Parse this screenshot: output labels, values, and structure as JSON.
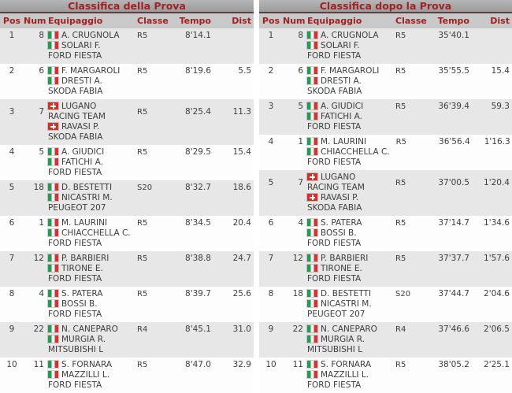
{
  "colors": {
    "title_text": "#a32026",
    "title_bar_top": "#b6b6b6",
    "title_bar_bottom": "#9b9b9b",
    "title_divider": "#5a4140",
    "header_bg": "#c9c9c9",
    "header_text": "#a32020",
    "row_stripe": "#e7e7e7",
    "body_text": "#3d3d3d",
    "italy_flag_green": "#1e9e4f",
    "italy_flag_red": "#d8312f",
    "swiss_flag_red": "#dd2c22"
  },
  "tables": [
    {
      "title": "Classifica della Prova",
      "columns": [
        "Pos",
        "Num",
        "Equipaggio",
        "Classe",
        "Tempo",
        "Dist"
      ],
      "rows": [
        {
          "pos": "1",
          "num": "8",
          "driver_flag": "it",
          "driver": "A. CRUGNOLA",
          "codriver_flag": "it",
          "codriver": "SOLARI F.",
          "car": "FORD FIESTA",
          "classe": "R5",
          "tempo": "8'14.1",
          "dist": ""
        },
        {
          "pos": "2",
          "num": "6",
          "driver_flag": "it",
          "driver": "F. MARGAROLI",
          "codriver_flag": "it",
          "codriver": "DRESTI A.",
          "car": "SKODA FABIA",
          "classe": "R5",
          "tempo": "8'19.6",
          "dist": "5.5"
        },
        {
          "pos": "3",
          "num": "7",
          "driver_flag": "ch",
          "driver": "LUGANO RACING TEAM",
          "codriver_flag": "ch",
          "codriver": "RAVASI P.",
          "car": "SKODA FABIA",
          "classe": "R5",
          "tempo": "8'25.4",
          "dist": "11.3"
        },
        {
          "pos": "4",
          "num": "5",
          "driver_flag": "it",
          "driver": "A. GIUDICI",
          "codriver_flag": "it",
          "codriver": "FATICHI A.",
          "car": "FORD FIESTA",
          "classe": "R5",
          "tempo": "8'29.5",
          "dist": "15.4"
        },
        {
          "pos": "5",
          "num": "18",
          "driver_flag": "it",
          "driver": "D. BESTETTI",
          "codriver_flag": "it",
          "codriver": "NICASTRI M.",
          "car": "PEUGEOT 207",
          "classe": "S20",
          "tempo": "8'32.7",
          "dist": "18.6"
        },
        {
          "pos": "6",
          "num": "1",
          "driver_flag": "it",
          "driver": "M. LAURINI",
          "codriver_flag": "it",
          "codriver": "CHIACCHELLA C.",
          "car": "FORD FIESTA",
          "classe": "R5",
          "tempo": "8'34.5",
          "dist": "20.4"
        },
        {
          "pos": "7",
          "num": "12",
          "driver_flag": "it",
          "driver": "P. BARBIERI",
          "codriver_flag": "it",
          "codriver": "TIRONE E.",
          "car": "FORD FIESTA",
          "classe": "R5",
          "tempo": "8'38.8",
          "dist": "24.7"
        },
        {
          "pos": "8",
          "num": "4",
          "driver_flag": "it",
          "driver": "S. PATERA",
          "codriver_flag": "it",
          "codriver": "BOSSI B.",
          "car": "FORD FIESTA",
          "classe": "R5",
          "tempo": "8'39.7",
          "dist": "25.6"
        },
        {
          "pos": "9",
          "num": "22",
          "driver_flag": "it",
          "driver": "N. CANEPARO",
          "codriver_flag": "it",
          "codriver": "MURGIA R.",
          "car": "MITSUBISHI L",
          "classe": "R4",
          "tempo": "8'45.1",
          "dist": "31.0"
        },
        {
          "pos": "10",
          "num": "11",
          "driver_flag": "it",
          "driver": "S. FORNARA",
          "codriver_flag": "it",
          "codriver": "MAZZILLI L.",
          "car": "FORD FIESTA",
          "classe": "R5",
          "tempo": "8'47.0",
          "dist": "32.9"
        }
      ]
    },
    {
      "title": "Classifica dopo la Prova",
      "columns": [
        "Pos",
        "Num",
        "Equipaggio",
        "Classe",
        "Tempo",
        "Dist"
      ],
      "rows": [
        {
          "pos": "1",
          "num": "8",
          "driver_flag": "it",
          "driver": "A. CRUGNOLA",
          "codriver_flag": "it",
          "codriver": "SOLARI F.",
          "car": "FORD FIESTA",
          "classe": "R5",
          "tempo": "35'40.1",
          "dist": ""
        },
        {
          "pos": "2",
          "num": "6",
          "driver_flag": "it",
          "driver": "F. MARGAROLI",
          "codriver_flag": "it",
          "codriver": "DRESTI A.",
          "car": "SKODA FABIA",
          "classe": "R5",
          "tempo": "35'55.5",
          "dist": "15.4"
        },
        {
          "pos": "3",
          "num": "5",
          "driver_flag": "it",
          "driver": "A. GIUDICI",
          "codriver_flag": "it",
          "codriver": "FATICHI A.",
          "car": "FORD FIESTA",
          "classe": "R5",
          "tempo": "36'39.4",
          "dist": "59.3"
        },
        {
          "pos": "4",
          "num": "1",
          "driver_flag": "it",
          "driver": "M. LAURINI",
          "codriver_flag": "it",
          "codriver": "CHIACCHELLA C.",
          "car": "FORD FIESTA",
          "classe": "R5",
          "tempo": "36'56.4",
          "dist": "1'16.3"
        },
        {
          "pos": "5",
          "num": "7",
          "driver_flag": "ch",
          "driver": "LUGANO RACING TEAM",
          "codriver_flag": "ch",
          "codriver": "RAVASI P.",
          "car": "SKODA FABIA",
          "classe": "R5",
          "tempo": "37'00.5",
          "dist": "1'20.4"
        },
        {
          "pos": "6",
          "num": "4",
          "driver_flag": "it",
          "driver": "S. PATERA",
          "codriver_flag": "it",
          "codriver": "BOSSI B.",
          "car": "FORD FIESTA",
          "classe": "R5",
          "tempo": "37'14.7",
          "dist": "1'34.6"
        },
        {
          "pos": "7",
          "num": "12",
          "driver_flag": "it",
          "driver": "P. BARBIERI",
          "codriver_flag": "it",
          "codriver": "TIRONE E.",
          "car": "FORD FIESTA",
          "classe": "R5",
          "tempo": "37'37.7",
          "dist": "1'57.6"
        },
        {
          "pos": "8",
          "num": "18",
          "driver_flag": "it",
          "driver": "D. BESTETTI",
          "codriver_flag": "it",
          "codriver": "NICASTRI M.",
          "car": "PEUGEOT 207",
          "classe": "S20",
          "tempo": "37'44.7",
          "dist": "2'04.6"
        },
        {
          "pos": "9",
          "num": "22",
          "driver_flag": "it",
          "driver": "N. CANEPARO",
          "codriver_flag": "it",
          "codriver": "MURGIA R.",
          "car": "MITSUBISHI L",
          "classe": "R4",
          "tempo": "37'46.6",
          "dist": "2'06.5"
        },
        {
          "pos": "10",
          "num": "11",
          "driver_flag": "it",
          "driver": "S. FORNARA",
          "codriver_flag": "it",
          "codriver": "MAZZILLI L.",
          "car": "FORD FIESTA",
          "classe": "R5",
          "tempo": "38'05.2",
          "dist": "2'25.1"
        }
      ]
    }
  ]
}
